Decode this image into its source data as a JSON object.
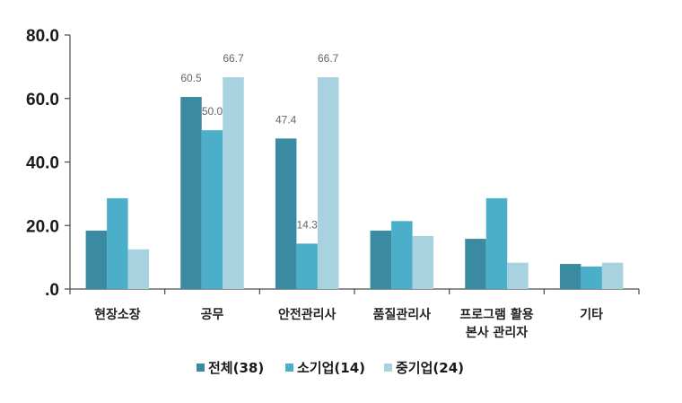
{
  "chart_data": {
    "type": "bar",
    "categories": [
      "현장소장",
      "공무",
      "안전관리사",
      "품질관리사",
      "프로그램 활용\n본사 관리자",
      "기타"
    ],
    "series": [
      {
        "name": "전체(38)",
        "color": "#3a8aa1",
        "values": [
          18.4,
          60.5,
          47.4,
          18.4,
          15.8,
          7.9
        ]
      },
      {
        "name": "소기업(14)",
        "color": "#4bafca",
        "values": [
          28.6,
          50.0,
          14.3,
          21.4,
          28.6,
          7.1
        ]
      },
      {
        "name": "중기업(24)",
        "color": "#a8d2e0",
        "values": [
          12.5,
          66.7,
          66.7,
          16.7,
          8.3,
          8.3
        ]
      }
    ],
    "ylim": [
      0,
      80
    ],
    "yticks": [
      ".0",
      "20.0",
      "40.0",
      "60.0",
      "80.0"
    ],
    "ytick_values": [
      0,
      20,
      40,
      60,
      80
    ],
    "data_labels": [
      {
        "series": 0,
        "category": 1,
        "text": "60.5"
      },
      {
        "series": 1,
        "category": 1,
        "text": "50.0"
      },
      {
        "series": 2,
        "category": 1,
        "text": "66.7"
      },
      {
        "series": 0,
        "category": 2,
        "text": "47.4"
      },
      {
        "series": 1,
        "category": 2,
        "text": "14.3"
      },
      {
        "series": 2,
        "category": 2,
        "text": "66.7"
      }
    ],
    "legend_position": "bottom",
    "grid": false
  }
}
